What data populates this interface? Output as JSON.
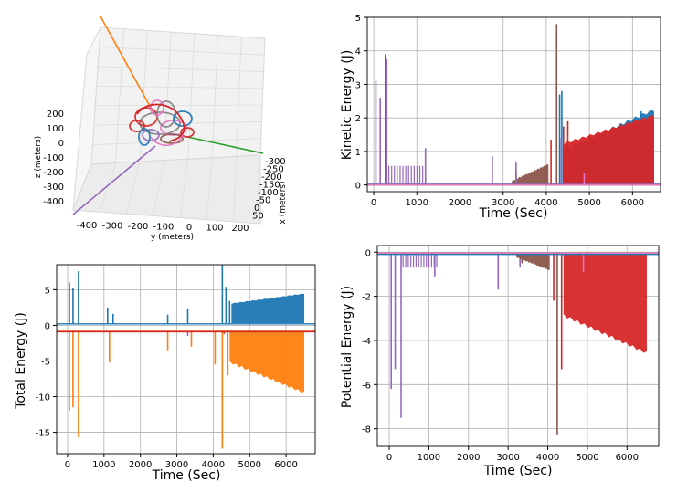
{
  "chart_data": [
    {
      "type": "line3d",
      "xlabel": "x (meters)",
      "ylabel": "y (meters)",
      "zlabel": "z (meters)",
      "x_ticks": [
        "-300",
        "-250",
        "-200",
        "-150",
        "-100",
        "-50",
        "0",
        "50"
      ],
      "y_ticks": [
        "-400",
        "-300",
        "-200",
        "-100",
        "0",
        "100",
        "200"
      ],
      "z_ticks": [
        "200",
        "100",
        "0",
        "-100",
        "-200",
        "-300",
        "-400"
      ],
      "series_colors": [
        "#1f77b4",
        "#ff7f0e",
        "#2ca02c",
        "#d62728",
        "#9467bd",
        "#8c564b",
        "#e377c2",
        "#7f7f7f"
      ]
    },
    {
      "type": "line",
      "xlabel": "Time (Sec)",
      "ylabel": "Kinetic Energy (J)",
      "xlim": [
        -150,
        6650
      ],
      "ylim": [
        -0.2,
        5
      ],
      "x_ticks": [
        0,
        1000,
        2000,
        3000,
        4000,
        5000,
        6000
      ],
      "y_ticks": [
        0,
        1,
        2,
        3,
        4,
        5
      ],
      "grid": true,
      "series": [
        {
          "color": "#1f77b4",
          "baseline": 0.02,
          "spikes": [
            [
              270,
              3.9
            ],
            [
              300,
              3.7
            ],
            [
              4310,
              2.7
            ],
            [
              4360,
              2.8
            ],
            [
              6200,
              2.2
            ],
            [
              6450,
              2.2
            ]
          ],
          "band": {
            "x0": 4400,
            "x1": 6500,
            "y0": 0,
            "y1a": 1.0,
            "y1b": 2.2
          }
        },
        {
          "color": "#d62728",
          "baseline": 0.0,
          "spikes": [
            [
              4110,
              1.35
            ],
            [
              4400,
              1.75
            ],
            [
              4500,
              1.9
            ]
          ],
          "band": {
            "x0": 4400,
            "x1": 6500,
            "y0": 0,
            "y1a": 1.2,
            "y1b": 2.05
          }
        },
        {
          "color": "#8c564b",
          "baseline": 0.0,
          "spikes": [
            [
              4240,
              4.8
            ],
            [
              3300,
              0.45
            ]
          ],
          "band": {
            "x0": 3200,
            "x1": 4050,
            "y0": 0,
            "y1a": 0.1,
            "y1b": 0.6
          }
        },
        {
          "color": "#9467bd",
          "baseline": 0.02,
          "spikes": [
            [
              50,
              3.1
            ],
            [
              150,
              2.6
            ],
            [
              300,
              3.75
            ],
            [
              1200,
              1.1
            ],
            [
              2750,
              0.85
            ],
            [
              3300,
              0.7
            ],
            [
              4350,
              1.4
            ]
          ],
          "comb": {
            "x0": 350,
            "x1": 1200,
            "n": 14,
            "h": 0.55
          }
        },
        {
          "color": "#e377c2",
          "baseline": 0.0,
          "spikes": [
            [
              4880,
              0.35
            ]
          ]
        }
      ]
    },
    {
      "type": "line",
      "xlabel": "Time (Sec)",
      "ylabel": "Total Energy (J)",
      "xlim": [
        -300,
        6800
      ],
      "ylim": [
        -18,
        8.5
      ],
      "x_ticks": [
        0,
        1000,
        2000,
        3000,
        4000,
        5000,
        6000
      ],
      "y_ticks": [
        5,
        0,
        -5,
        -10,
        -15
      ],
      "grid": true,
      "series": [
        {
          "color": "#1f77b4",
          "baseline": 0.2,
          "spikes": [
            [
              50,
              6.0
            ],
            [
              150,
              5.2
            ],
            [
              300,
              7.6
            ],
            [
              1100,
              2.5
            ],
            [
              1250,
              1.6
            ],
            [
              2750,
              1.5
            ],
            [
              3300,
              2.3
            ],
            [
              4250,
              8.5
            ],
            [
              4350,
              5.4
            ],
            [
              4450,
              3.4
            ]
          ],
          "band": {
            "x0": 4500,
            "x1": 6500,
            "y0": 0.3,
            "y1a": 3.0,
            "y1b": 4.4
          }
        },
        {
          "color": "#ff7f0e",
          "baseline": -0.7,
          "spikes": [
            [
              50,
              -12.0
            ],
            [
              150,
              -11.5
            ],
            [
              300,
              -15.7
            ],
            [
              1150,
              -5.2
            ],
            [
              2750,
              -3.5
            ],
            [
              3400,
              -3.0
            ],
            [
              4050,
              -5.5
            ],
            [
              4250,
              -17.3
            ],
            [
              4400,
              -7.0
            ]
          ],
          "band": {
            "x0": 4450,
            "x1": 6500,
            "y0": -0.8,
            "y1a": -5.0,
            "y1b": -9.3
          }
        },
        {
          "color": "#9467bd",
          "baseline": -0.9,
          "spikes": [
            [
              3300,
              -1.5
            ]
          ]
        },
        {
          "color": "#d62728",
          "baseline": -0.9,
          "spikes": [
            [
              4300,
              -1.2
            ]
          ]
        }
      ]
    },
    {
      "type": "line",
      "xlabel": "Time (Sec)",
      "ylabel": "Potential Energy (J)",
      "xlim": [
        -300,
        6800
      ],
      "ylim": [
        -8.8,
        0.3
      ],
      "x_ticks": [
        0,
        1000,
        2000,
        3000,
        4000,
        5000,
        6000
      ],
      "y_ticks": [
        0,
        -2,
        -4,
        -6,
        -8
      ],
      "grid": true,
      "series": [
        {
          "color": "#9467bd",
          "baseline": -0.05,
          "spikes": [
            [
              50,
              -6.2
            ],
            [
              150,
              -5.3
            ],
            [
              300,
              -7.5
            ],
            [
              1150,
              -1.1
            ],
            [
              2750,
              -1.7
            ],
            [
              3300,
              -0.7
            ]
          ],
          "comb": {
            "x0": 350,
            "x1": 1200,
            "n": 14,
            "h": -0.65
          }
        },
        {
          "color": "#8c564b",
          "baseline": -0.05,
          "spikes": [
            [
              4240,
              -8.3
            ],
            [
              3350,
              -0.5
            ]
          ],
          "band": {
            "x0": 3200,
            "x1": 4050,
            "y0": -0.1,
            "y1a": -0.2,
            "y1b": -0.8
          }
        },
        {
          "color": "#d62728",
          "baseline": -0.05,
          "spikes": [
            [
              4150,
              -2.2
            ],
            [
              4350,
              -5.3
            ]
          ],
          "band": {
            "x0": 4400,
            "x1": 6500,
            "y0": -0.1,
            "y1a": -2.8,
            "y1b": -4.5
          }
        },
        {
          "color": "#e377c2",
          "baseline": -0.05,
          "spikes": [
            [
              4900,
              -0.9
            ]
          ]
        },
        {
          "color": "#1f77b4",
          "baseline": -0.1,
          "spikes": []
        }
      ]
    }
  ]
}
